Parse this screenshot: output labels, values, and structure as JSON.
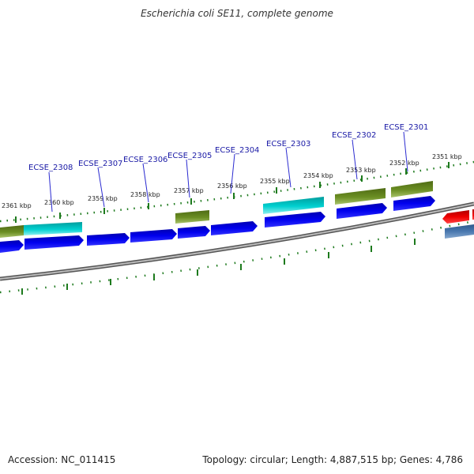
{
  "title": "Escherichia coli SE11, complete genome",
  "footer": {
    "accession": "Accession: NC_011415",
    "summary": "Topology: circular; Length: 4,887,515 bp; Genes: 4,786"
  },
  "colors": {
    "gene_blue": "#0000ee",
    "gene_red": "#ee0000",
    "feature_olive": "#6b8e23",
    "feature_cyan": "#00c8c8",
    "feature_steelblue": "#4a78b0",
    "backbone": "#888888",
    "tick": "#1d7a1d",
    "label": "#1a1aa6"
  },
  "tick_labels": [
    "2361 kbp",
    "2360 kbp",
    "2359 kbp",
    "2358 kbp",
    "2357 kbp",
    "2356 kbp",
    "2355 kbp",
    "2354 kbp",
    "2353 kbp",
    "2352 kbp",
    "2351 kbp"
  ],
  "gene_labels": [
    "ECSE_2308",
    "ECSE_2307",
    "ECSE_2306",
    "ECSE_2305",
    "ECSE_2304",
    "ECSE_2303",
    "ECSE_2302",
    "ECSE_2301"
  ]
}
